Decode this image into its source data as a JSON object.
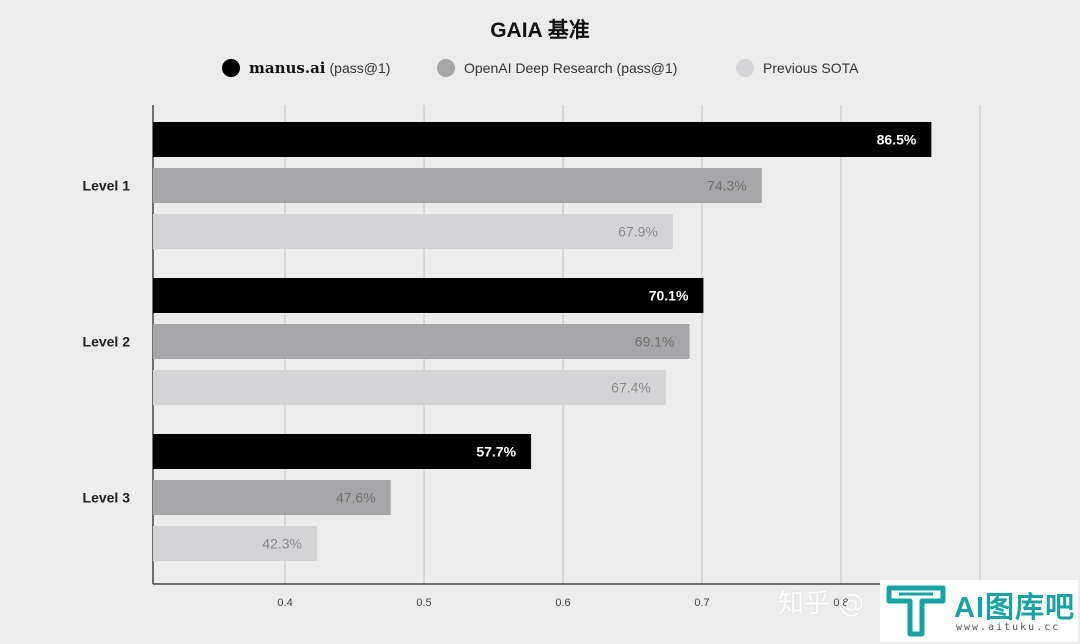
{
  "chart_data": {
    "type": "bar",
    "orientation": "horizontal",
    "title": "GAIA 基准",
    "categories": [
      "Level 1",
      "Level 2",
      "Level 3"
    ],
    "series": [
      {
        "name": "manus.ai (pass@1)",
        "brand": "manus.ai",
        "suffix": "(pass@1)",
        "values": [
          86.5,
          70.1,
          57.7
        ],
        "labels": [
          "86.5%",
          "70.1%",
          "57.7%"
        ],
        "color": "#000000",
        "label_color": "#ffffff"
      },
      {
        "name": "OpenAI Deep Research (pass@1)",
        "values": [
          74.3,
          69.1,
          47.6
        ],
        "labels": [
          "74.3%",
          "69.1%",
          "47.6%"
        ],
        "color": "#a6a6a8",
        "label_color": "#707070"
      },
      {
        "name": "Previous SOTA",
        "values": [
          67.9,
          67.4,
          42.3
        ],
        "labels": [
          "67.9%",
          "67.4%",
          "42.3%"
        ],
        "color": "#d4d4d7",
        "label_color": "#8a8a8a"
      }
    ],
    "x_ticks": [
      "0.4",
      "0.5",
      "0.6",
      "0.7",
      "0.8"
    ],
    "xlim": [
      0.305,
      0.9
    ],
    "grid": true,
    "legend_placement": "top-center"
  },
  "watermark": {
    "zhihu": "知乎 @",
    "brand": "AI图库吧",
    "url": "www.aituku.cc",
    "logo_icon": "aituku-logo-icon",
    "logo_color": "#17a2a4"
  }
}
